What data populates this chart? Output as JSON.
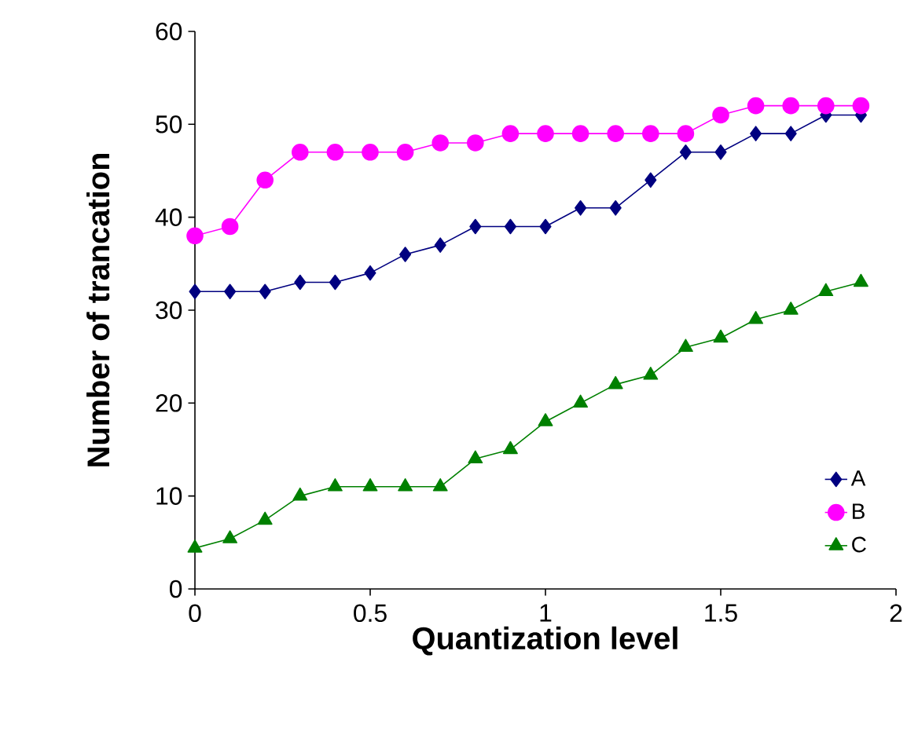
{
  "chart_data": {
    "type": "line",
    "xlabel": "Quantization level",
    "ylabel": "Number of trancation",
    "x": [
      0,
      0.1,
      0.2,
      0.3,
      0.4,
      0.5,
      0.6,
      0.7,
      0.8,
      0.9,
      1.0,
      1.1,
      1.2,
      1.3,
      1.4,
      1.5,
      1.6,
      1.7,
      1.8,
      1.9
    ],
    "series": [
      {
        "name": "A",
        "color": "#000080",
        "marker": "diamond",
        "values": [
          32,
          32,
          32,
          33,
          33,
          34,
          36,
          37,
          39,
          39,
          39,
          41,
          41,
          44,
          47,
          47,
          49,
          49,
          51,
          51
        ]
      },
      {
        "name": "B",
        "color": "#ff00ff",
        "marker": "circle",
        "values": [
          38,
          39,
          44,
          47,
          47,
          47,
          47,
          48,
          48,
          49,
          49,
          49,
          49,
          49,
          49,
          51,
          52,
          52,
          52,
          52
        ]
      },
      {
        "name": "C",
        "color": "#008000",
        "marker": "triangle",
        "values": [
          4.4,
          5.4,
          7.4,
          10,
          11,
          11,
          11,
          11,
          14,
          15,
          18,
          20,
          22,
          23,
          26,
          27,
          29,
          30,
          32,
          33
        ]
      }
    ],
    "xlim": [
      0,
      2
    ],
    "ylim": [
      0,
      60
    ],
    "xticks": [
      0,
      0.5,
      1,
      1.5,
      2
    ],
    "yticks": [
      0,
      10,
      20,
      30,
      40,
      50,
      60
    ],
    "grid": false,
    "legend": "bottom right",
    "line_style": "solid"
  }
}
